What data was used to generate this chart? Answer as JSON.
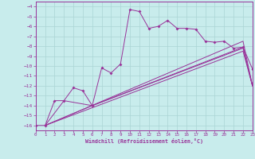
{
  "title": "",
  "xlabel": "Windchill (Refroidissement éolien,°C)",
  "bg_color": "#c8ecec",
  "grid_color": "#aad4d4",
  "line_color": "#993399",
  "xlim": [
    0,
    23
  ],
  "ylim": [
    -16.5,
    -3.5
  ],
  "xticks": [
    0,
    1,
    2,
    3,
    4,
    5,
    6,
    7,
    8,
    9,
    10,
    11,
    12,
    13,
    14,
    15,
    16,
    17,
    18,
    19,
    20,
    21,
    22,
    23
  ],
  "yticks": [
    -4,
    -5,
    -6,
    -7,
    -8,
    -9,
    -10,
    -11,
    -12,
    -13,
    -14,
    -15,
    -16
  ],
  "line1_x": [
    0,
    1,
    2,
    3,
    4,
    5,
    6,
    7,
    8,
    9,
    10,
    11,
    12,
    13,
    14,
    15,
    16,
    17,
    18,
    19,
    20,
    21,
    22,
    23
  ],
  "line1_y": [
    -16,
    -16,
    -13.5,
    -13.5,
    -12.2,
    -12.5,
    -14.0,
    -10.2,
    -10.7,
    -9.8,
    -4.3,
    -4.5,
    -6.2,
    -6.0,
    -5.4,
    -6.2,
    -6.2,
    -6.3,
    -7.5,
    -7.6,
    -7.5,
    -8.2,
    -8.1,
    -10.3
  ],
  "line2_x": [
    1,
    3,
    6,
    22,
    23
  ],
  "line2_y": [
    -16,
    -13.5,
    -14.0,
    -8.2,
    -12.0
  ],
  "line3_x": [
    1,
    6,
    22,
    23
  ],
  "line3_y": [
    -16,
    -14.0,
    -8.1,
    -12.0
  ],
  "line4_x": [
    1,
    22,
    23
  ],
  "line4_y": [
    -16,
    -8.5,
    -12.0
  ],
  "line5_x": [
    1,
    22,
    23
  ],
  "line5_y": [
    -16,
    -7.5,
    -12.0
  ]
}
